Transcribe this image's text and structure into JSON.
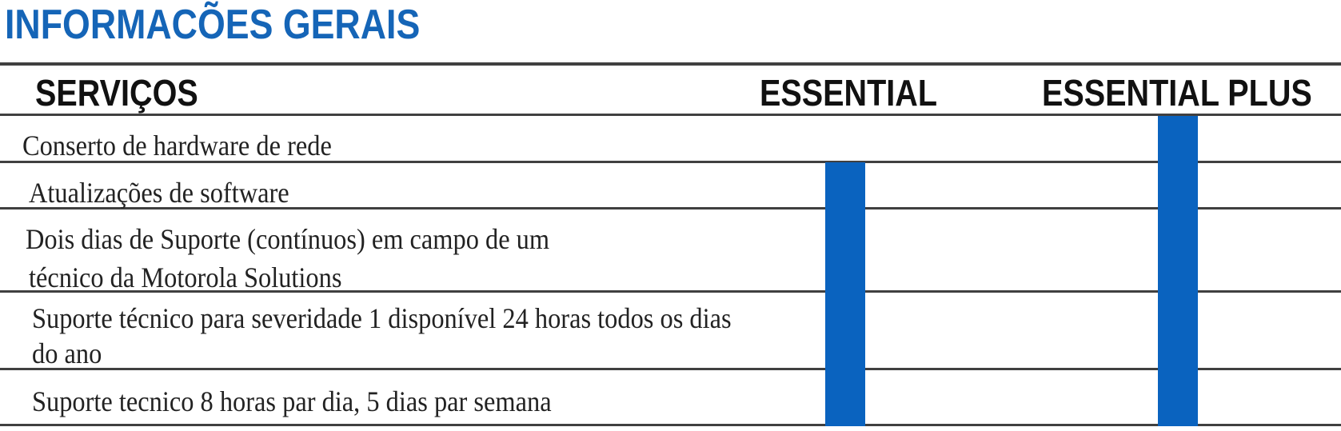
{
  "title": "INFORMACÕES GERAIS",
  "table": {
    "headers": {
      "services": "SERVIÇOS",
      "essential": "ESSENTIAL",
      "essential_plus": "ESSENTIAL PLUS"
    },
    "rows": [
      {
        "line1": "Conserto de hardware de rede",
        "line2": "",
        "essential": false,
        "essential_plus": true
      },
      {
        "line1": "Atualizações de software",
        "line2": "",
        "essential": true,
        "essential_plus": true
      },
      {
        "line1": "Dois dias de Suporte (contínuos) em campo de um",
        "line2": "técnico da Motorola Solutions",
        "essential": true,
        "essential_plus": true
      },
      {
        "line1": "Suporte técnico para severidade 1 disponível 24 horas todos os dias",
        "line2": "do ano",
        "essential": true,
        "essential_plus": true
      },
      {
        "line1": "Suporte tecnico 8 horas par dia, 5 dias par semana",
        "line2": "",
        "essential": true,
        "essential_plus": true
      }
    ]
  },
  "colors": {
    "title": "#1565b7",
    "bar": "#0a63bf",
    "rule": "#404040"
  }
}
